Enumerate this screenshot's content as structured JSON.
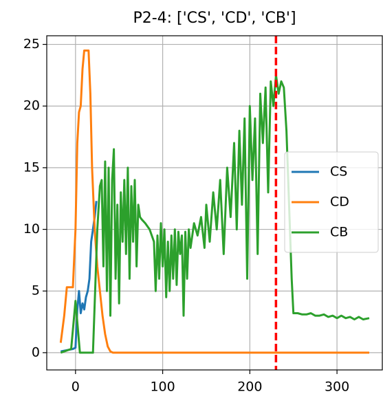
{
  "chart_data": {
    "type": "line",
    "title": "P2-4: ['CS', 'CD', 'CB']",
    "xlim": [
      -33,
      352
    ],
    "ylim": [
      -1.4,
      25.7
    ],
    "xticks": [
      0,
      100,
      200,
      300
    ],
    "yticks": [
      0,
      5,
      10,
      15,
      20,
      25
    ],
    "grid": true,
    "legend": "center right",
    "vline": 230,
    "vline_color": "#ff0000",
    "series": [
      {
        "name": "CS",
        "color": "#1f77b4",
        "x": [
          -17,
          -10,
          -3,
          0,
          2,
          4,
          6,
          8,
          10,
          12,
          14,
          16,
          18,
          20,
          22,
          24
        ],
        "values": [
          0.1,
          0.2,
          0.3,
          0.4,
          3.5,
          5,
          3.2,
          4,
          3.5,
          4.5,
          5,
          6,
          9,
          10,
          11,
          12.3
        ]
      },
      {
        "name": "CD",
        "color": "#ff7f0e",
        "x": [
          -17,
          -13,
          -10,
          -5,
          -3,
          0,
          2,
          4,
          6,
          8,
          10,
          12,
          15,
          17,
          19,
          22,
          25,
          28,
          31,
          34,
          37,
          40,
          43,
          337
        ],
        "values": [
          0.8,
          3,
          5.3,
          5.3,
          5.3,
          10,
          17,
          19.5,
          20,
          23,
          24.5,
          24.5,
          24.5,
          21,
          15,
          10,
          7,
          5,
          3,
          1.5,
          0.5,
          0.1,
          0,
          0
        ]
      },
      {
        "name": "CB",
        "color": "#2ca02c",
        "x": [
          -17,
          -5,
          0,
          5,
          20,
          25,
          28,
          30,
          32,
          34,
          36,
          38,
          40,
          42,
          44,
          46,
          48,
          50,
          52,
          54,
          56,
          58,
          60,
          62,
          64,
          66,
          68,
          70,
          72,
          74,
          76,
          80,
          85,
          90,
          92,
          94,
          96,
          98,
          100,
          102,
          104,
          106,
          108,
          110,
          112,
          114,
          116,
          118,
          120,
          122,
          124,
          126,
          128,
          130,
          132,
          136,
          140,
          144,
          148,
          150,
          154,
          158,
          162,
          166,
          170,
          174,
          178,
          182,
          185,
          188,
          191,
          194,
          197,
          200,
          203,
          206,
          209,
          212,
          215,
          218,
          221,
          224,
          227,
          230,
          233,
          236,
          239,
          242,
          245,
          248,
          250,
          255,
          260,
          265,
          270,
          275,
          280,
          285,
          290,
          295,
          300,
          305,
          310,
          315,
          320,
          325,
          330,
          337
        ],
        "values": [
          0,
          0.3,
          4.2,
          0,
          0,
          10,
          13.5,
          14,
          7,
          15.5,
          5,
          15,
          3,
          14,
          16.5,
          6,
          12,
          4,
          13,
          9,
          14,
          8,
          15,
          6,
          13.5,
          9,
          14,
          7,
          12,
          11,
          10.8,
          10.5,
          10,
          9,
          5,
          9.5,
          6,
          10.5,
          7,
          10,
          4.5,
          9,
          5,
          9.5,
          6,
          10,
          5.5,
          9.8,
          8,
          9.5,
          3,
          9.8,
          6,
          10,
          8.5,
          10.5,
          9.5,
          11,
          8.5,
          12,
          9,
          13,
          10,
          14,
          8,
          15,
          11,
          17,
          10,
          18,
          12,
          19,
          6,
          20,
          14,
          19,
          8,
          21,
          17,
          21.5,
          13,
          22,
          20,
          22.5,
          21,
          22,
          21.5,
          18,
          12,
          6,
          3.2,
          3.2,
          3.1,
          3.1,
          3.2,
          3,
          3,
          3.1,
          2.9,
          3,
          2.8,
          3,
          2.8,
          2.9,
          2.7,
          2.9,
          2.7,
          2.8
        ]
      }
    ]
  }
}
